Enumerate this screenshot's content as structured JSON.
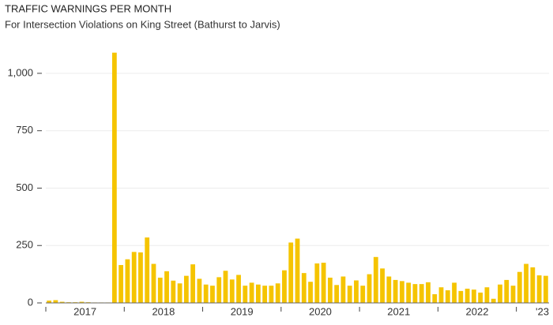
{
  "chart_data": {
    "type": "bar",
    "title": "TRAFFIC WARNINGS PER MONTH",
    "subtitle": "For Intersection Violations on King Street (Bathurst to Jarvis)",
    "color": "#f5c400",
    "grid": true,
    "ylim": [
      0,
      1096
    ],
    "yticks": [
      0,
      250,
      500,
      750,
      {
        "value": 1000,
        "label": "1,000"
      }
    ],
    "year_labels": [
      "2017",
      "2018",
      "2019",
      "2020",
      "2021",
      "2022",
      "'23"
    ],
    "categories": [
      null,
      null,
      null,
      null,
      null,
      null,
      null,
      null,
      null,
      null,
      null,
      null,
      null,
      null,
      null,
      null,
      null,
      null,
      null,
      null,
      null,
      null,
      null,
      null,
      null,
      null,
      null,
      null,
      null,
      null,
      null,
      null,
      null,
      null,
      null,
      null,
      null,
      null,
      null,
      null,
      null,
      null,
      null,
      null,
      null,
      null,
      null,
      null,
      null,
      null,
      null,
      null,
      null,
      null,
      null,
      null,
      null,
      null,
      null,
      null,
      null,
      null,
      null,
      null,
      null,
      null,
      null,
      null,
      null,
      null,
      null,
      null,
      null,
      null,
      null,
      null,
      null
    ],
    "values": [
      10,
      12,
      5,
      3,
      3,
      5,
      3,
      2,
      2,
      2,
      1090,
      165,
      190,
      222,
      220,
      285,
      170,
      110,
      138,
      97,
      85,
      118,
      168,
      105,
      80,
      75,
      112,
      140,
      102,
      122,
      75,
      88,
      80,
      75,
      75,
      85,
      142,
      263,
      280,
      130,
      92,
      172,
      175,
      110,
      78,
      115,
      75,
      98,
      75,
      125,
      200,
      150,
      115,
      100,
      95,
      88,
      82,
      82,
      90,
      38,
      68,
      55,
      88,
      52,
      62,
      58,
      45,
      68,
      18,
      80,
      100,
      75,
      135,
      170,
      155,
      120,
      118
    ]
  }
}
